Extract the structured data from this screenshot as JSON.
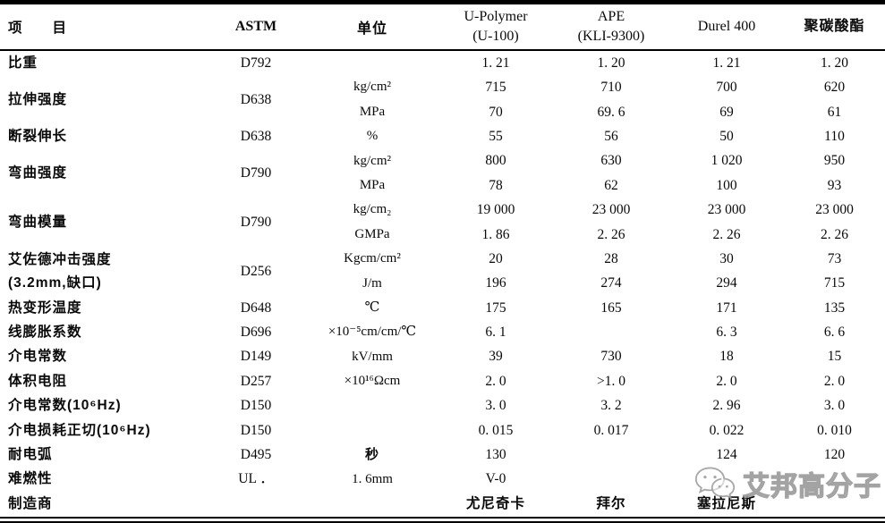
{
  "header": {
    "item": "项　　目",
    "astm": "ASTM",
    "unit": "单位",
    "materials": [
      {
        "line1": "U-Polymer",
        "line2": "(U-100)"
      },
      {
        "line1": "APE",
        "line2": "(KLI-9300)"
      },
      {
        "line1": "Durel 400",
        "line2": ""
      },
      {
        "line1": "聚碳酸酯",
        "line2": ""
      }
    ]
  },
  "rows": [
    {
      "label": "比重",
      "astm": "D792",
      "sub": [
        {
          "unit": "",
          "values": [
            "1. 21",
            "1. 20",
            "1. 21",
            "1. 20"
          ]
        }
      ]
    },
    {
      "label": "拉伸强度",
      "astm": "D638",
      "sub": [
        {
          "unit": "kg/cm²",
          "values": [
            "715",
            "710",
            "700",
            "620"
          ]
        },
        {
          "unit": "MPa",
          "values": [
            "70",
            "69. 6",
            "69",
            "61"
          ]
        }
      ]
    },
    {
      "label": "断裂伸长",
      "astm": "D638",
      "sub": [
        {
          "unit": "%",
          "values": [
            "55",
            "56",
            "50",
            "110"
          ]
        }
      ]
    },
    {
      "label": "弯曲强度",
      "astm": "D790",
      "sub": [
        {
          "unit": "kg/cm²",
          "values": [
            "800",
            "630",
            "1 020",
            "950"
          ]
        },
        {
          "unit": "MPa",
          "values": [
            "78",
            "62",
            "100",
            "93"
          ]
        }
      ]
    },
    {
      "label": "弯曲模量",
      "astm": "D790",
      "sub": [
        {
          "unit": "kg/cm₂",
          "values": [
            "19 000",
            "23 000",
            "23 000",
            "23 000"
          ]
        },
        {
          "unit": "GMPa",
          "values": [
            "1. 86",
            "2. 26",
            "2. 26",
            "2. 26"
          ]
        }
      ]
    },
    {
      "label": "艾佐德冲击强度",
      "label2": "(3.2mm,缺口)",
      "astm": "D256",
      "sub": [
        {
          "unit": "Kgcm/cm²",
          "values": [
            "20",
            "28",
            "30",
            "73"
          ]
        },
        {
          "unit": "J/m",
          "values": [
            "196",
            "274",
            "294",
            "715"
          ]
        }
      ]
    },
    {
      "label": "热变形温度",
      "astm": "D648",
      "sub": [
        {
          "unit": "℃",
          "values": [
            "175",
            "165",
            "171",
            "135"
          ]
        }
      ]
    },
    {
      "label": "线膨胀系数",
      "astm": "D696",
      "sub": [
        {
          "unit": "×10⁻⁵cm/cm/℃",
          "values": [
            "6. 1",
            "",
            "6. 3",
            "6. 6"
          ]
        }
      ]
    },
    {
      "label": "介电常数",
      "astm": "D149",
      "sub": [
        {
          "unit": "kV/mm",
          "values": [
            "39",
            "730",
            "18",
            "15"
          ]
        }
      ]
    },
    {
      "label": "体积电阻",
      "astm": "D257",
      "sub": [
        {
          "unit": "×10¹⁶Ωcm",
          "values": [
            "2. 0",
            ">1. 0",
            "2. 0",
            "2. 0"
          ]
        }
      ]
    },
    {
      "label": "介电常数(10⁶Hz)",
      "astm": "D150",
      "sub": [
        {
          "unit": "",
          "values": [
            "3. 0",
            "3. 2",
            "2. 96",
            "3. 0"
          ]
        }
      ]
    },
    {
      "label": "介电损耗正切(10⁶Hz)",
      "astm": "D150",
      "sub": [
        {
          "unit": "",
          "values": [
            "0. 015",
            "0. 017",
            "0. 022",
            "0. 010"
          ]
        }
      ]
    },
    {
      "label": "耐电弧",
      "astm": "D495",
      "sub": [
        {
          "unit": "秒",
          "values": [
            "130",
            "",
            "124",
            "120"
          ]
        }
      ]
    },
    {
      "label": "难燃性",
      "astm": "UL ．",
      "sub": [
        {
          "unit": "1. 6mm",
          "values": [
            "V-0",
            "",
            "",
            ""
          ]
        }
      ]
    },
    {
      "label": "制造商",
      "astm": "",
      "sub": [
        {
          "unit": "",
          "values": [
            "尤尼奇卡",
            "拜尔",
            "塞拉尼斯",
            ""
          ]
        }
      ]
    }
  ],
  "watermark": {
    "text": "艾邦高分子",
    "icon": "wechat-icon",
    "color": "#949494"
  }
}
